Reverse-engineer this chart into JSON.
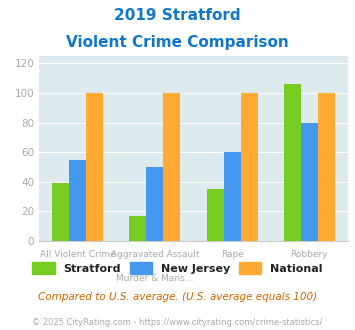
{
  "title_line1": "2019 Stratford",
  "title_line2": "Violent Crime Comparison",
  "cat_labels_top": [
    "All Violent Crime",
    "Aggravated Assault",
    "Rape",
    "Robbery"
  ],
  "cat_labels_bottom": [
    "",
    "Murder & Mans...",
    "",
    ""
  ],
  "stratford": [
    39,
    17,
    35,
    106
  ],
  "new_jersey": [
    55,
    50,
    60,
    80
  ],
  "national": [
    100,
    100,
    100,
    100
  ],
  "bar_colors": {
    "stratford": "#77cc22",
    "new_jersey": "#4499ee",
    "national": "#ffaa33"
  },
  "ylim": [
    0,
    125
  ],
  "yticks": [
    0,
    20,
    40,
    60,
    80,
    100,
    120
  ],
  "bg_color": "#ffffff",
  "plot_bg": "#ddeaee",
  "footer_text": "Compared to U.S. average. (U.S. average equals 100)",
  "copyright_text": "© 2025 CityRating.com - https://www.cityrating.com/crime-statistics/",
  "legend_labels": [
    "Stratford",
    "New Jersey",
    "National"
  ],
  "title_color": "#1177cc",
  "footer_color": "#cc6600",
  "copyright_color": "#aaaaaa",
  "tick_color": "#aaaaaa"
}
